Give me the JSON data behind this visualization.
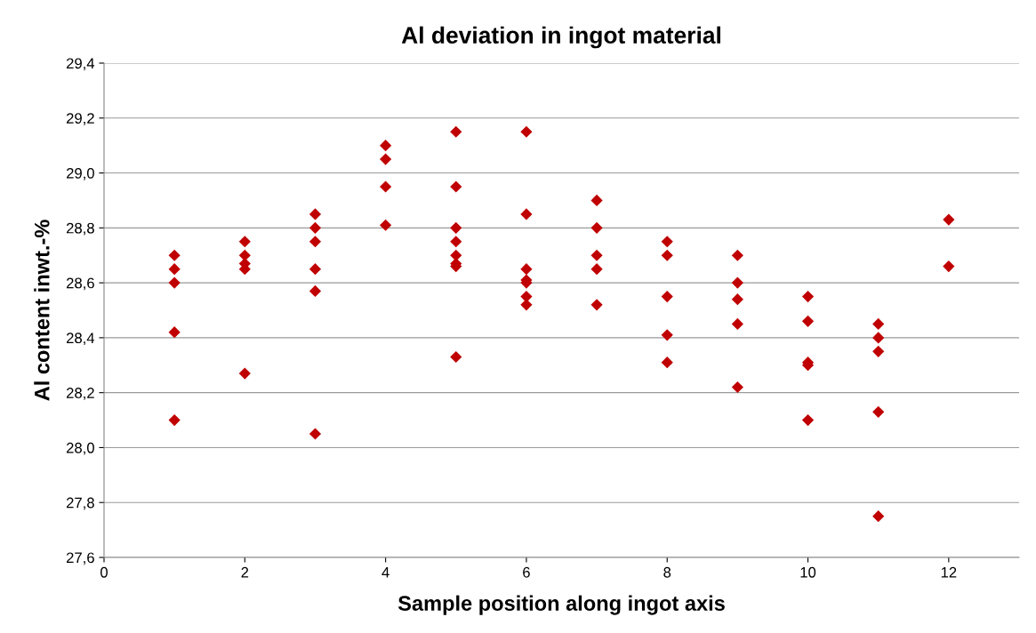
{
  "chart_data": {
    "type": "scatter",
    "title": "Al deviation in ingot material",
    "xlabel": "Sample position along ingot axis",
    "ylabel": "Al content inwt.-%",
    "series": [
      {
        "color": "#c00000",
        "x": [
          1,
          1,
          1,
          1,
          1,
          2,
          2,
          2,
          2,
          2,
          3,
          3,
          3,
          3,
          3,
          3,
          4,
          4,
          4,
          4,
          5,
          5,
          5,
          5,
          5,
          5,
          5,
          5,
          6,
          6,
          6,
          6,
          6,
          6,
          6,
          7,
          7,
          7,
          7,
          7,
          8,
          8,
          8,
          8,
          8,
          9,
          9,
          9,
          9,
          9,
          10,
          10,
          10,
          10,
          10,
          11,
          11,
          11,
          11,
          11,
          12,
          12
        ],
        "values": [
          28.7,
          28.65,
          28.6,
          28.42,
          28.1,
          28.75,
          28.7,
          28.67,
          28.65,
          28.27,
          28.85,
          28.8,
          28.75,
          28.65,
          28.57,
          28.05,
          29.1,
          29.05,
          28.95,
          28.81,
          29.15,
          28.95,
          28.8,
          28.75,
          28.7,
          28.67,
          28.66,
          28.33,
          29.15,
          28.85,
          28.65,
          28.61,
          28.6,
          28.55,
          28.52,
          28.9,
          28.8,
          28.7,
          28.65,
          28.52,
          28.75,
          28.7,
          28.55,
          28.41,
          28.31,
          28.7,
          28.6,
          28.54,
          28.45,
          28.22,
          28.55,
          28.46,
          28.31,
          28.3,
          28.1,
          28.45,
          28.4,
          28.35,
          28.13,
          27.75,
          28.83,
          28.66
        ]
      }
    ],
    "xlim": [
      0,
      13
    ],
    "xticks": [
      0,
      2,
      4,
      6,
      8,
      10,
      12
    ],
    "ylim": [
      27.6,
      29.4
    ],
    "yticks": [
      {
        "value": 27.6,
        "label": "27,6"
      },
      {
        "value": 27.8,
        "label": "27,8"
      },
      {
        "value": 28.0,
        "label": "28,0"
      },
      {
        "value": 28.2,
        "label": "28,2"
      },
      {
        "value": 28.4,
        "label": "28,4"
      },
      {
        "value": 28.6,
        "label": "28,6"
      },
      {
        "value": 28.8,
        "label": "28,8"
      },
      {
        "value": 29.0,
        "label": "29,0"
      },
      {
        "value": 29.2,
        "label": "29,2"
      },
      {
        "value": 29.4,
        "label": "29,4"
      }
    ],
    "grid": "y",
    "marker": "diamond",
    "legend": false
  }
}
